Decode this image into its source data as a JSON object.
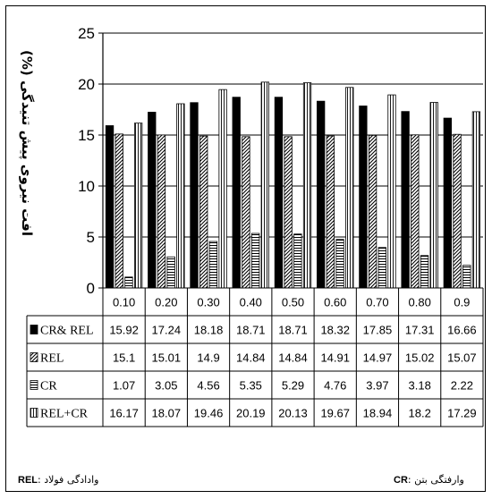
{
  "chart_data": {
    "type": "bar",
    "ylabel": "افت نیروی پیش تنیدگی (%)",
    "ylim": [
      0,
      25
    ],
    "yticks": [
      0,
      5,
      10,
      15,
      20,
      25
    ],
    "grid": true,
    "categories": [
      "0.10",
      "0.20",
      "0.30",
      "0.40",
      "0.50",
      "0.60",
      "0.70",
      "0.80",
      "0.9"
    ],
    "series": [
      {
        "name": "CR& REL",
        "pattern": "solid",
        "values": [
          15.92,
          17.24,
          18.18,
          18.71,
          18.71,
          18.32,
          17.85,
          17.31,
          16.66
        ],
        "labels": [
          "15.92",
          "17.24",
          "18.18",
          "18.71",
          "18.71",
          "18.32",
          "17.85",
          "17.31",
          "16.66"
        ]
      },
      {
        "name": "REL",
        "pattern": "diagonal",
        "values": [
          15.1,
          15.01,
          14.9,
          14.84,
          14.84,
          14.91,
          14.97,
          15.02,
          15.07
        ],
        "labels": [
          "15.1",
          "15.01",
          "14.9",
          "14.84",
          "14.84",
          "14.91",
          "14.97",
          "15.02",
          "15.07"
        ]
      },
      {
        "name": "CR",
        "pattern": "horizontal",
        "values": [
          1.07,
          3.05,
          4.56,
          5.35,
          5.29,
          4.76,
          3.97,
          3.18,
          2.22
        ],
        "labels": [
          "1.07",
          "3.05",
          "4.56",
          "5.35",
          "5.29",
          "4.76",
          "3.97",
          "3.18",
          "2.22"
        ]
      },
      {
        "name": "REL+CR",
        "pattern": "vertical",
        "values": [
          16.17,
          18.07,
          19.46,
          20.19,
          20.13,
          19.67,
          18.94,
          18.2,
          17.29
        ],
        "labels": [
          "16.17",
          "18.07",
          "19.46",
          "20.19",
          "20.13",
          "19.67",
          "18.94",
          "18.2",
          "17.29"
        ]
      }
    ]
  },
  "footer": {
    "rel_abbr": "REL",
    "rel_text": ": وادادگی فولاد",
    "cr_abbr": "CR",
    "cr_text": ": وارفتگی بتن"
  }
}
